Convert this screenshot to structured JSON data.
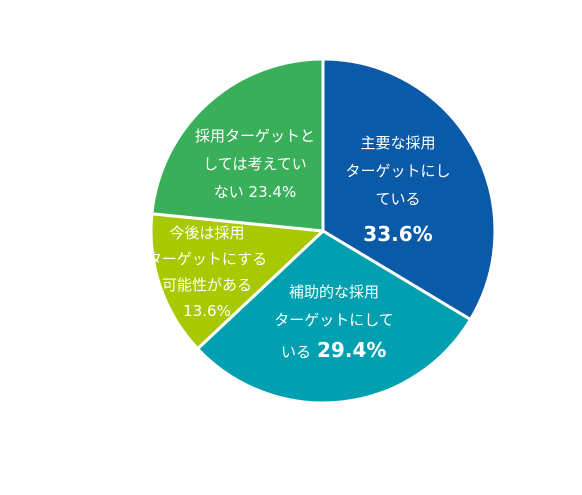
{
  "chart_data": {
    "type": "pie",
    "title": "",
    "slices": [
      {
        "key": "main",
        "lines": [
          "主要な採用",
          "ターゲットにし",
          "ている"
        ],
        "value_label": "33.6%",
        "value": 33.6,
        "color": "#0a5aa8"
      },
      {
        "key": "supplementary",
        "lines": [
          "補助的な採用",
          "ターゲットにして",
          "いる"
        ],
        "value_label": "29.4%",
        "value": 29.4,
        "color": "#00a0b0"
      },
      {
        "key": "future",
        "lines": [
          "今後は採用",
          "ターゲットにする",
          "可能性がある",
          "13.6%"
        ],
        "value_label": "",
        "value": 13.6,
        "color": "#a8c800"
      },
      {
        "key": "not-target",
        "lines": [
          "採用ターゲットと",
          "しては考えてい",
          "ない 23.4%"
        ],
        "value_label": "",
        "value": 23.4,
        "color": "#3aaf5a"
      }
    ]
  }
}
